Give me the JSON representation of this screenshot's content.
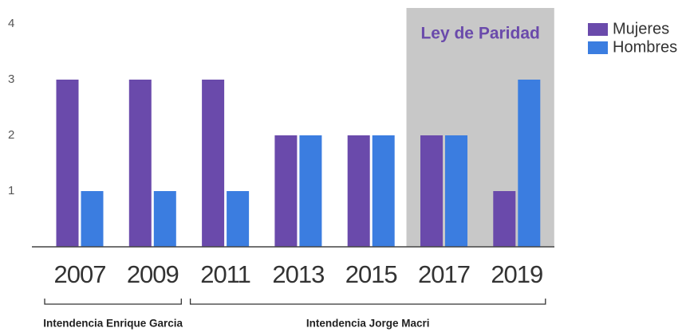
{
  "chart_data": {
    "type": "bar",
    "categories": [
      "2007",
      "2009",
      "2011",
      "2013",
      "2015",
      "2017",
      "2019"
    ],
    "series": [
      {
        "name": "Mujeres",
        "color": "#6a4aab",
        "values": [
          3,
          3,
          3,
          2,
          2,
          2,
          1
        ]
      },
      {
        "name": "Hombres",
        "color": "#3b7de0",
        "values": [
          1,
          1,
          1,
          2,
          2,
          2,
          3
        ]
      }
    ],
    "ylim": [
      0,
      4
    ],
    "yticks": [
      1,
      2,
      3,
      4
    ],
    "grid": false,
    "legend": "right",
    "highlight": {
      "text": "Ley de Paridad",
      "span": [
        "2017",
        "2019"
      ],
      "color": "#c8c8c8"
    },
    "groups": [
      {
        "label": "Intendencia Enrique Garcia",
        "span": [
          "2007",
          "2009"
        ]
      },
      {
        "label": "Intendencia Jorge Macri",
        "span": [
          "2011",
          "2019"
        ]
      }
    ]
  }
}
